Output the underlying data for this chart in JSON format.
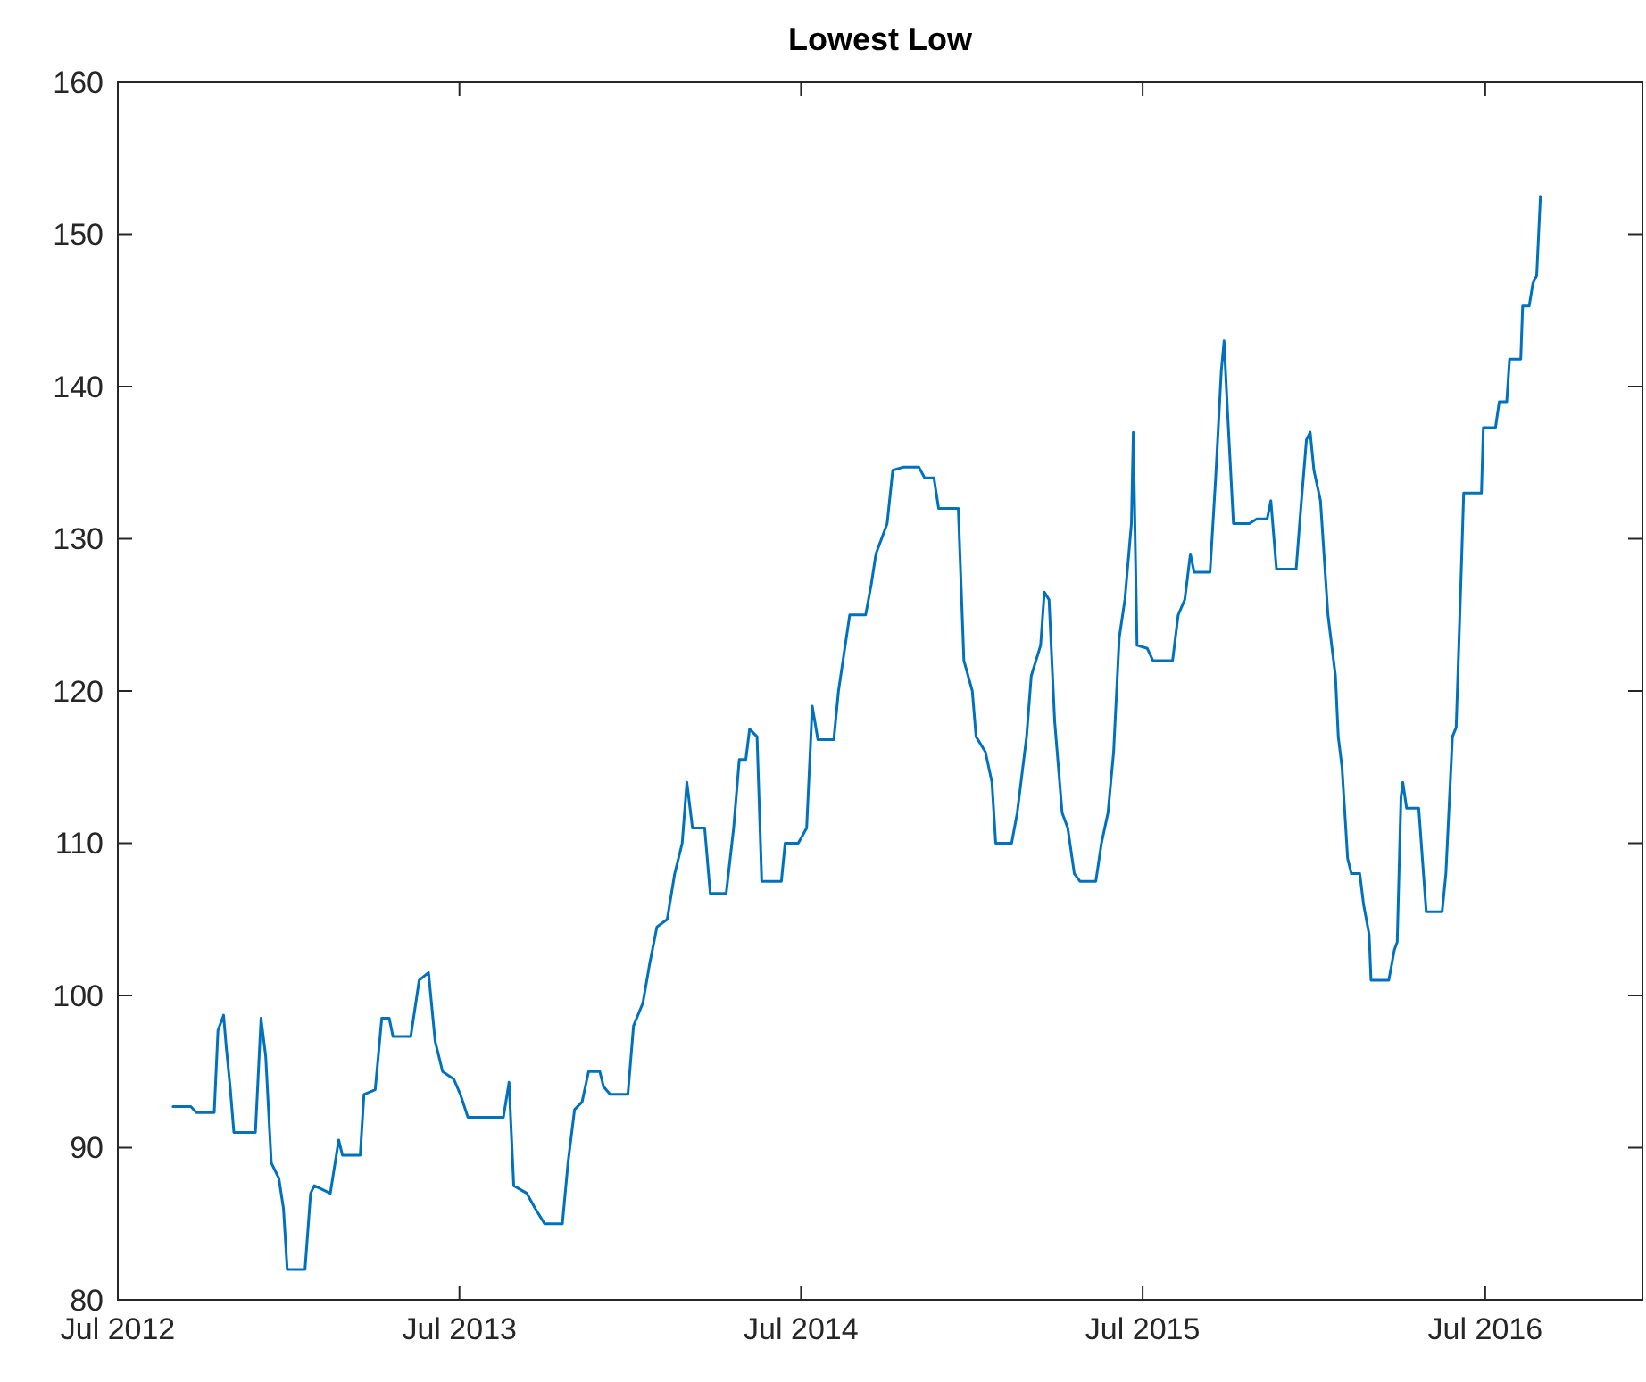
{
  "chart_data": {
    "type": "line",
    "title": "Lowest Low",
    "x": [
      "2012-08-29",
      "2012-09-17",
      "2012-09-23",
      "2012-10-12",
      "2012-10-16",
      "2012-10-22",
      "2012-10-25",
      "2012-10-29",
      "2012-11-02",
      "2012-11-25",
      "2012-12-01",
      "2012-12-06",
      "2012-12-12",
      "2012-12-20",
      "2012-12-25",
      "2012-12-29",
      "2013-01-17",
      "2013-01-23",
      "2013-01-27",
      "2013-02-13",
      "2013-02-22",
      "2013-02-26",
      "2013-03-17",
      "2013-03-21",
      "2013-04-02",
      "2013-04-09",
      "2013-04-17",
      "2013-04-21",
      "2013-05-10",
      "2013-05-19",
      "2013-05-29",
      "2013-06-05",
      "2013-06-13",
      "2013-06-25",
      "2013-07-02",
      "2013-07-10",
      "2013-08-17",
      "2013-08-23",
      "2013-08-28",
      "2013-09-11",
      "2013-09-20",
      "2013-09-30",
      "2013-10-19",
      "2013-10-25",
      "2013-11-01",
      "2013-11-09",
      "2013-11-16",
      "2013-11-28",
      "2013-12-02",
      "2013-12-09",
      "2013-12-28",
      "2014-01-03",
      "2014-01-13",
      "2014-01-20",
      "2014-01-28",
      "2014-02-08",
      "2014-02-16",
      "2014-02-24",
      "2014-03-01",
      "2014-03-07",
      "2014-03-20",
      "2014-03-26",
      "2014-04-12",
      "2014-04-20",
      "2014-04-26",
      "2014-05-03",
      "2014-05-07",
      "2014-05-15",
      "2014-05-20",
      "2014-06-10",
      "2014-06-14",
      "2014-06-28",
      "2014-07-07",
      "2014-07-13",
      "2014-07-19",
      "2014-08-05",
      "2014-08-10",
      "2014-08-16",
      "2014-08-22",
      "2014-09-08",
      "2014-09-14",
      "2014-09-19",
      "2014-09-25",
      "2014-10-01",
      "2014-10-07",
      "2014-10-18",
      "2014-11-04",
      "2014-11-10",
      "2014-11-20",
      "2014-11-25",
      "2014-12-16",
      "2014-12-22",
      "2014-12-31",
      "2015-01-04",
      "2015-01-14",
      "2015-01-21",
      "2015-01-25",
      "2015-02-11",
      "2015-02-17",
      "2015-02-27",
      "2015-03-04",
      "2015-03-14",
      "2015-03-18",
      "2015-03-23",
      "2015-03-29",
      "2015-04-06",
      "2015-04-12",
      "2015-04-19",
      "2015-04-25",
      "2015-05-12",
      "2015-05-18",
      "2015-05-25",
      "2015-05-31",
      "2015-06-06",
      "2015-06-12",
      "2015-06-19",
      "2015-06-21",
      "2015-06-25",
      "2015-07-06",
      "2015-07-12",
      "2015-08-02",
      "2015-08-08",
      "2015-08-15",
      "2015-08-21",
      "2015-08-25",
      "2015-09-11",
      "2015-09-17",
      "2015-09-23",
      "2015-09-26",
      "2015-09-30",
      "2015-10-06",
      "2015-10-23",
      "2015-10-31",
      "2015-11-11",
      "2015-11-15",
      "2015-11-21",
      "2015-12-12",
      "2015-12-17",
      "2015-12-23",
      "2015-12-27",
      "2015-12-31",
      "2016-01-07",
      "2016-01-15",
      "2016-01-23",
      "2016-01-26",
      "2016-01-30",
      "2016-02-05",
      "2016-02-09",
      "2016-02-18",
      "2016-02-22",
      "2016-02-28",
      "2016-03-01",
      "2016-03-20",
      "2016-03-26",
      "2016-03-29",
      "2016-04-02",
      "2016-04-04",
      "2016-04-08",
      "2016-04-21",
      "2016-04-29",
      "2016-05-16",
      "2016-05-20",
      "2016-05-27",
      "2016-05-31",
      "2016-06-06",
      "2016-06-08",
      "2016-06-27",
      "2016-06-29",
      "2016-07-12",
      "2016-07-16",
      "2016-07-24",
      "2016-07-27",
      "2016-08-08",
      "2016-08-10",
      "2016-08-17",
      "2016-08-21",
      "2016-08-25",
      "2016-08-29"
    ],
    "series": [
      {
        "color": "#0072bd",
        "values": [
          92.7,
          92.7,
          92.3,
          92.3,
          97.7,
          98.7,
          96.5,
          94,
          91,
          91,
          98.5,
          96,
          89,
          88,
          86,
          82,
          82,
          87,
          87.5,
          87,
          90.5,
          89.5,
          89.5,
          93.5,
          93.8,
          98.5,
          98.5,
          97.3,
          97.3,
          101,
          101.5,
          97,
          95,
          94.5,
          93.5,
          92,
          92,
          94.3,
          87.5,
          87,
          86,
          85,
          85,
          89,
          92.5,
          93,
          95,
          95,
          94,
          93.5,
          93.5,
          98,
          99.5,
          102,
          104.5,
          105,
          108,
          110,
          114,
          111,
          111,
          106.7,
          106.7,
          111,
          115.5,
          115.5,
          117.5,
          117,
          107.5,
          107.5,
          110,
          110,
          111,
          119,
          116.8,
          116.8,
          120,
          122.5,
          125,
          125,
          127,
          129,
          130,
          131,
          134.5,
          134.7,
          134.7,
          134,
          134,
          132,
          132,
          122,
          120,
          117,
          116,
          114,
          110,
          110,
          112,
          117,
          121,
          123,
          126.5,
          126,
          118,
          112,
          111,
          108,
          107.5,
          107.5,
          110,
          112,
          116,
          123.5,
          126,
          131,
          137,
          123,
          122.8,
          122,
          122,
          125,
          126,
          129,
          127.8,
          127.8,
          134,
          141,
          143,
          138,
          131,
          131,
          131.3,
          131.3,
          132.5,
          128,
          128,
          132,
          136.5,
          137,
          134.5,
          132.5,
          125,
          121,
          117,
          115,
          109,
          108,
          108,
          106,
          104,
          101,
          101,
          103,
          103.5,
          113,
          114,
          112.3,
          112.3,
          105.5,
          105.5,
          108,
          117,
          117.6,
          129,
          133,
          133,
          137.3,
          137.3,
          139,
          139,
          141.8,
          141.8,
          145.3,
          145.3,
          146.8,
          147.3,
          152.5
        ]
      }
    ],
    "xlim": [
      "2012-07-01",
      "2016-12-16"
    ],
    "xticks": [
      {
        "value": "2012-07-01",
        "label": "Jul 2012"
      },
      {
        "value": "2013-07-01",
        "label": "Jul 2013"
      },
      {
        "value": "2014-07-01",
        "label": "Jul 2014"
      },
      {
        "value": "2015-07-01",
        "label": "Jul 2015"
      },
      {
        "value": "2016-07-01",
        "label": "Jul 2016"
      }
    ],
    "ylim": [
      80,
      160
    ],
    "yticks": [
      80,
      90,
      100,
      110,
      120,
      130,
      140,
      150,
      160
    ],
    "grid": false,
    "line_style": "solid",
    "marker": "none"
  }
}
